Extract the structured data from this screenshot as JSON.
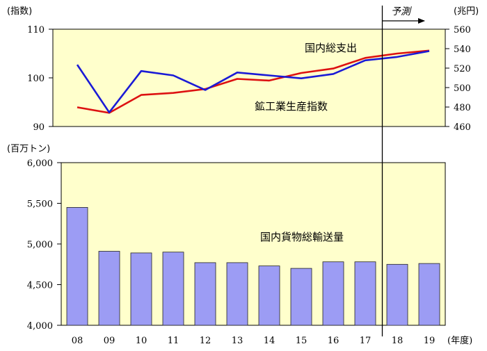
{
  "forecast_label": "予測",
  "x_unit": "(年度)",
  "chart_data": [
    {
      "type": "line",
      "categories": [
        "08",
        "09",
        "10",
        "11",
        "12",
        "13",
        "14",
        "15",
        "16",
        "17",
        "18",
        "19"
      ],
      "left_unit": "(指数)",
      "right_unit": "(兆円)",
      "y_left_ticks": [
        "90",
        "100",
        "110"
      ],
      "y_right_ticks": [
        "460",
        "480",
        "500",
        "520",
        "540",
        "560"
      ],
      "ylim_left": [
        90,
        110
      ],
      "ylim_right": [
        460,
        560
      ],
      "series": [
        {
          "name": "国内総支出",
          "axis": "right",
          "color": "#dd1111",
          "values": [
            479.7,
            474.0,
            492.4,
            494.5,
            498.5,
            508.9,
            507.2,
            515.0,
            519.6,
            530.5,
            535.0,
            538.0
          ]
        },
        {
          "name": "鉱工業生産指数",
          "axis": "left",
          "color": "#1a1ad6",
          "values": [
            102.7,
            92.9,
            101.4,
            100.5,
            97.5,
            101.1,
            100.5,
            99.9,
            100.8,
            103.6,
            104.3,
            105.5
          ]
        }
      ]
    },
    {
      "type": "bar",
      "categories": [
        "08",
        "09",
        "10",
        "11",
        "12",
        "13",
        "14",
        "15",
        "16",
        "17",
        "18",
        "19"
      ],
      "y_unit": "(百万トン)",
      "y_ticks": [
        "4,000",
        "4,500",
        "5,000",
        "5,500",
        "6,000"
      ],
      "ylim": [
        4000,
        6000
      ],
      "series": [
        {
          "name": "国内貨物総輸送量",
          "color": "#9c9cf4",
          "values": [
            5450,
            4910,
            4890,
            4900,
            4770,
            4770,
            4730,
            4700,
            4780,
            4780,
            4750,
            4760
          ]
        }
      ]
    }
  ],
  "colors": {
    "panel_background": "#ffffcc"
  }
}
